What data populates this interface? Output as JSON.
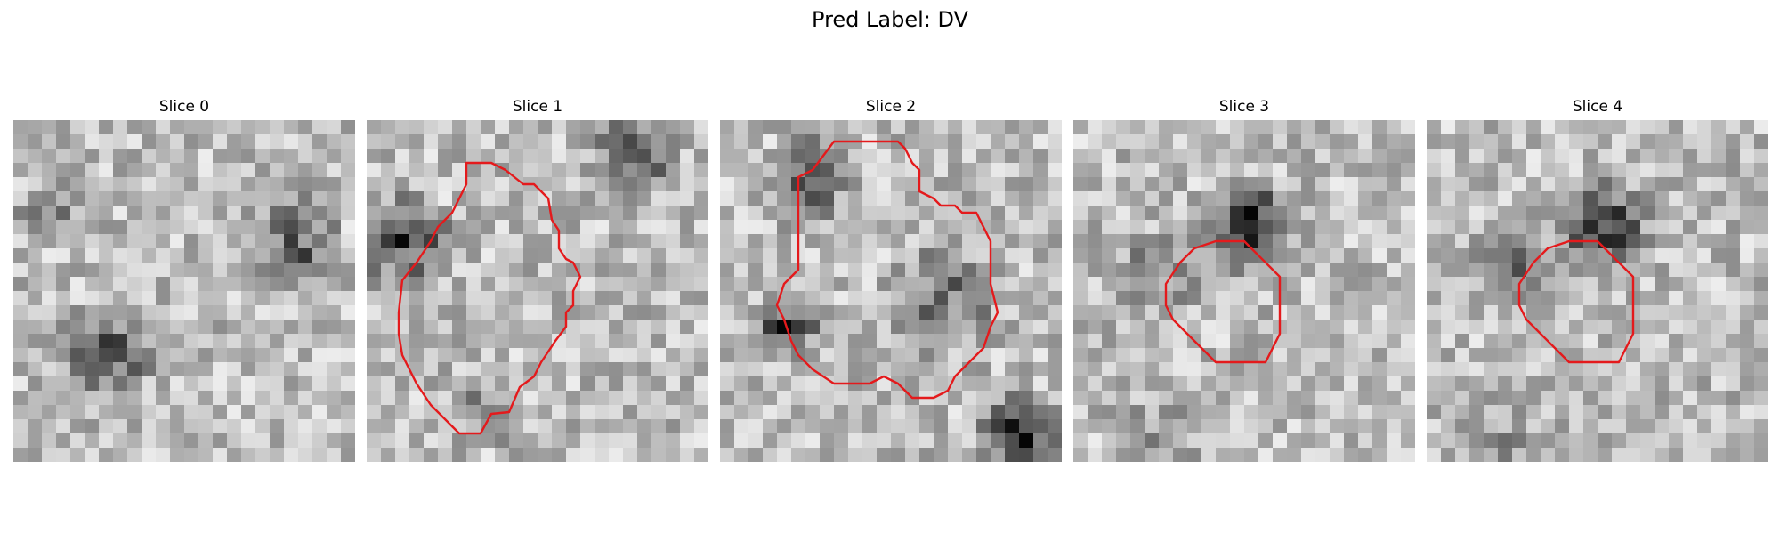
{
  "figure": {
    "title": "Pred Label: DV",
    "slices": [
      {
        "label": "Slice 0",
        "seed": 11,
        "has_contour": false
      },
      {
        "label": "Slice 1",
        "seed": 23,
        "has_contour": true
      },
      {
        "label": "Slice 2",
        "seed": 37,
        "has_contour": true
      },
      {
        "label": "Slice 3",
        "seed": 51,
        "has_contour": true
      },
      {
        "label": "Slice 4",
        "seed": 52,
        "has_contour": true
      }
    ],
    "contour_color": "#e41a1c",
    "colormap": "grayscale"
  }
}
